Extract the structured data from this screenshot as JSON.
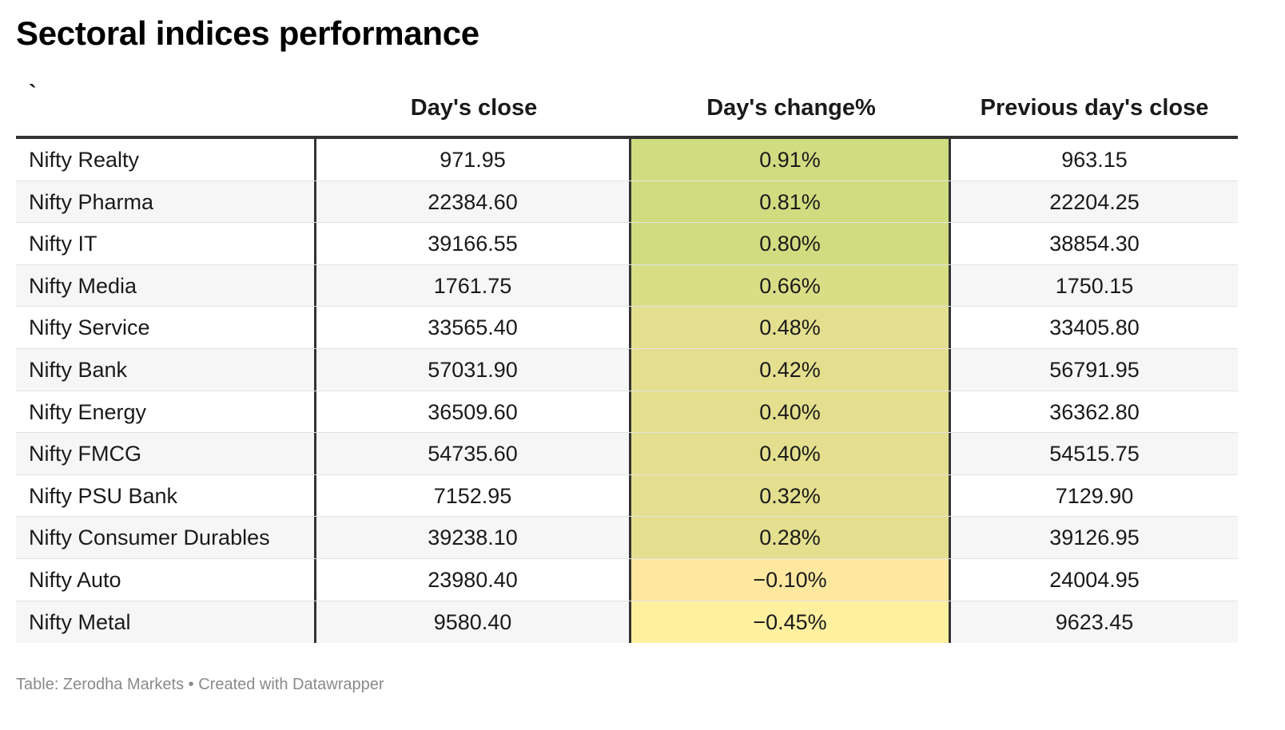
{
  "title": "Sectoral indices performance",
  "chart_data": {
    "type": "table",
    "columns": [
      "`",
      "Day's close",
      "Day's change%",
      "Previous day's close"
    ],
    "rows": [
      {
        "name": "Nifty Realty",
        "close": "971.95",
        "change": "0.91%",
        "prev": "963.15",
        "change_value": 0.91
      },
      {
        "name": "Nifty Pharma",
        "close": "22384.60",
        "change": "0.81%",
        "prev": "22204.25",
        "change_value": 0.81
      },
      {
        "name": "Nifty IT",
        "close": "39166.55",
        "change": "0.80%",
        "prev": "38854.30",
        "change_value": 0.8
      },
      {
        "name": "Nifty Media",
        "close": "1761.75",
        "change": "0.66%",
        "prev": "1750.15",
        "change_value": 0.66
      },
      {
        "name": "Nifty Service",
        "close": "33565.40",
        "change": "0.48%",
        "prev": "33405.80",
        "change_value": 0.48
      },
      {
        "name": "Nifty Bank",
        "close": "57031.90",
        "change": "0.42%",
        "prev": "56791.95",
        "change_value": 0.42
      },
      {
        "name": "Nifty Energy",
        "close": "36509.60",
        "change": "0.40%",
        "prev": "36362.80",
        "change_value": 0.4
      },
      {
        "name": "Nifty FMCG",
        "close": "54735.60",
        "change": "0.40%",
        "prev": "54515.75",
        "change_value": 0.4
      },
      {
        "name": "Nifty PSU Bank",
        "close": "7152.95",
        "change": "0.32%",
        "prev": "7129.90",
        "change_value": 0.32
      },
      {
        "name": "Nifty Consumer Durables",
        "close": "39238.10",
        "change": "0.28%",
        "prev": "39126.95",
        "change_value": 0.28
      },
      {
        "name": "Nifty Auto",
        "close": "23980.40",
        "change": "−0.10%",
        "prev": "24004.95",
        "change_value": -0.1
      },
      {
        "name": "Nifty Metal",
        "close": "9580.40",
        "change": "−0.45%",
        "prev": "9623.45",
        "change_value": -0.45
      }
    ],
    "heat_colors": {
      "high": "#d0dc80",
      "mid": "#e4df8e",
      "low": "#fee8a0",
      "lowest": "#fff0a0"
    }
  },
  "footer": "Table: Zerodha Markets • Created with Datawrapper"
}
